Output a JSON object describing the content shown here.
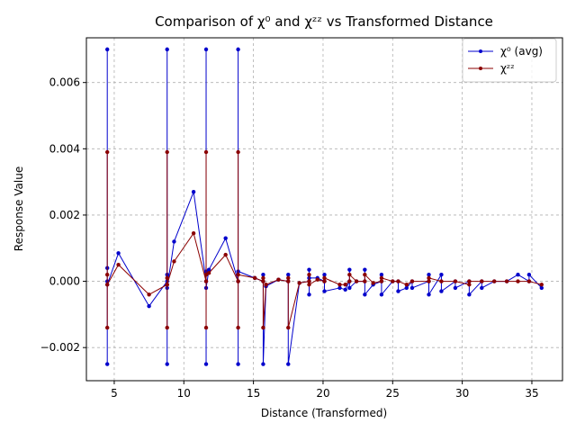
{
  "chart_data": {
    "type": "line",
    "title": "Comparison of χ⁰ and χᶻᶻ vs Transformed Distance",
    "xlabel": "Distance (Transformed)",
    "ylabel": "Response Value",
    "xlim": [
      3.0,
      37.2
    ],
    "ylim": [
      -0.003,
      0.00735
    ],
    "xticks": [
      5,
      10,
      15,
      20,
      25,
      30,
      35
    ],
    "yticks": [
      -0.002,
      0.0,
      0.002,
      0.004,
      0.006
    ],
    "xtick_labels": [
      "5",
      "10",
      "15",
      "20",
      "25",
      "30",
      "35"
    ],
    "ytick_labels": [
      "−0.002",
      "0.000",
      "0.002",
      "0.004",
      "0.006"
    ],
    "grid": true,
    "legend": "top-right",
    "series": [
      {
        "name": "χ⁰ (avg)",
        "color": "#0000cc",
        "x": [
          4.5,
          4.5,
          4.5,
          4.5,
          4.5,
          5.3,
          7.5,
          8.8,
          8.8,
          8.8,
          8.8,
          8.8,
          9.3,
          10.7,
          11.6,
          11.6,
          11.6,
          11.6,
          11.6,
          11.8,
          13.0,
          13.9,
          13.9,
          13.9,
          13.9,
          15.1,
          15.7,
          15.7,
          15.7,
          15.9,
          16.8,
          17.5,
          17.5,
          17.5,
          18.3,
          19.0,
          19.0,
          19.0,
          19.0,
          19.6,
          20.1,
          20.1,
          20.1,
          21.2,
          21.6,
          21.9,
          21.9,
          21.9,
          22.4,
          23.0,
          23.0,
          23.0,
          23.6,
          24.2,
          24.2,
          24.2,
          25.0,
          25.4,
          25.4,
          26.0,
          26.4,
          26.4,
          27.6,
          27.6,
          27.6,
          28.5,
          28.5,
          29.5,
          29.5,
          30.5,
          30.5,
          31.4,
          31.4,
          32.3,
          33.2,
          34.0,
          34.8,
          34.8,
          35.7
        ],
        "y": [
          0.0,
          0.007,
          -0.0025,
          0.0004,
          -0.0001,
          0.00085,
          -0.00075,
          0.0,
          0.007,
          -0.0025,
          0.0002,
          -0.0002,
          0.0012,
          0.0027,
          0.0,
          0.007,
          -0.0025,
          0.0003,
          -0.0002,
          0.00035,
          0.0013,
          0.0,
          0.007,
          -0.0025,
          0.0003,
          0.0001,
          0.0,
          0.0002,
          -0.0025,
          -0.00015,
          5e-05,
          0.0,
          0.0002,
          -0.0025,
          -5e-05,
          0.0,
          0.00035,
          -0.0004,
          0.0001,
          0.0001,
          0.0,
          0.0002,
          -0.0003,
          -0.0002,
          -0.00025,
          0.0,
          0.00035,
          -0.0002,
          0.0,
          0.0,
          0.00035,
          -0.0004,
          -0.0001,
          0.0,
          0.0002,
          -0.0004,
          0.0,
          0.0,
          -0.0003,
          -0.0002,
          0.0,
          -0.0002,
          0.0,
          0.0002,
          -0.0004,
          0.0002,
          -0.0003,
          0.0,
          -0.0002,
          0.0,
          -0.0004,
          0.0,
          -0.0002,
          0.0,
          0.0,
          0.0002,
          0.0,
          0.0002,
          -0.0002
        ]
      },
      {
        "name": "χᶻᶻ",
        "color": "#8b0000",
        "x": [
          4.5,
          4.5,
          4.5,
          4.5,
          5.3,
          7.5,
          8.8,
          8.8,
          8.8,
          8.8,
          8.8,
          9.3,
          10.7,
          11.6,
          11.6,
          11.6,
          11.6,
          11.8,
          13.0,
          13.9,
          13.9,
          13.9,
          13.9,
          15.1,
          15.7,
          15.7,
          15.7,
          15.9,
          16.8,
          17.5,
          17.5,
          17.5,
          18.3,
          19.0,
          19.0,
          19.0,
          19.6,
          20.1,
          20.1,
          21.2,
          21.6,
          21.9,
          21.9,
          22.4,
          23.0,
          23.0,
          23.6,
          24.2,
          24.2,
          25.0,
          25.4,
          26.0,
          26.4,
          27.6,
          27.6,
          28.5,
          29.5,
          30.5,
          30.5,
          31.4,
          32.3,
          33.2,
          34.0,
          34.8,
          35.7
        ],
        "y": [
          0.0002,
          0.0039,
          -0.0014,
          -0.0001,
          0.0005,
          -0.0004,
          -0.0001,
          0.0039,
          -0.0014,
          0.0001,
          -0.0001,
          0.0006,
          0.00145,
          0.0,
          0.0039,
          -0.0014,
          0.0002,
          0.00025,
          0.0008,
          0.0,
          0.0039,
          -0.0014,
          0.0002,
          0.0001,
          0.0,
          0.0001,
          -0.0014,
          -0.0001,
          5e-05,
          0.0,
          0.0001,
          -0.0014,
          -5e-05,
          0.0,
          0.0002,
          -0.0001,
          5e-05,
          0.0,
          0.0001,
          -0.0001,
          -0.0001,
          0.0,
          0.0002,
          0.0,
          0.0,
          0.0002,
          -5e-05,
          0.0,
          0.0001,
          0.0,
          0.0,
          -0.0001,
          0.0,
          0.0,
          0.0001,
          0.0,
          0.0,
          -0.0001,
          0.0,
          0.0,
          0.0,
          0.0,
          0.0,
          0.0,
          -0.0001
        ]
      }
    ]
  }
}
